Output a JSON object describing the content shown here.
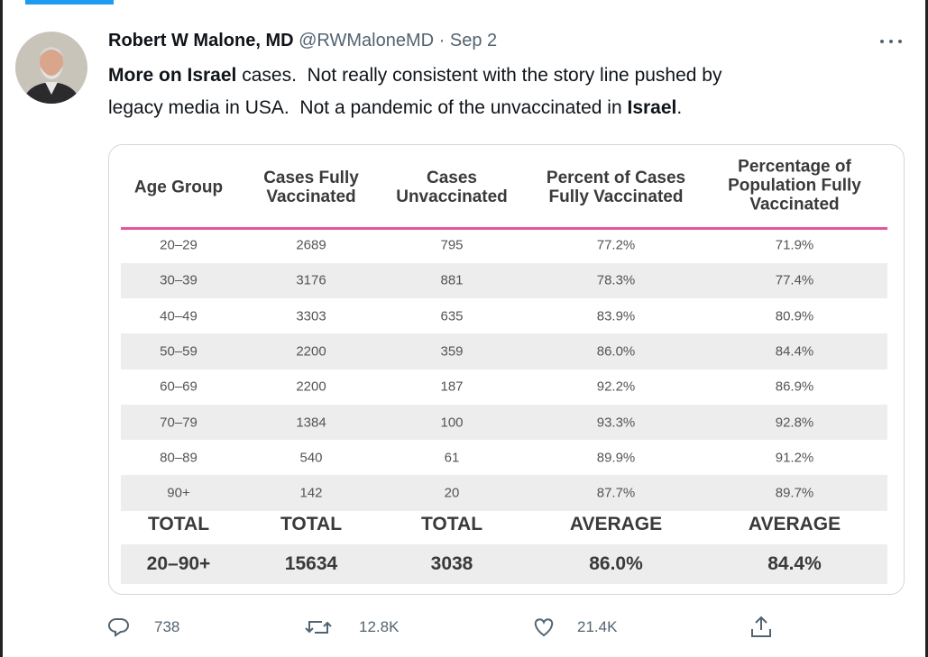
{
  "tweet": {
    "author": {
      "name": "Robert W Malone, MD",
      "handle": "@RWMaloneMD",
      "separator": "·",
      "date": "Sep 2"
    },
    "text_lines": [
      [
        {
          "text": "More on Israel",
          "bold": true
        },
        {
          "text": " cases.  Not really consistent with the story line pushed by",
          "bold": false
        }
      ],
      [
        {
          "text": "legacy media in USA.  Not a pandemic of the unvaccinated in ",
          "bold": false
        },
        {
          "text": "Israel",
          "bold": true
        },
        {
          "text": ".",
          "bold": false
        }
      ]
    ],
    "table": {
      "headers": [
        [
          "Age Group"
        ],
        [
          "Cases Fully",
          "Vaccinated"
        ],
        [
          "Cases",
          "Unvaccinated"
        ],
        [
          "Percent of Cases",
          "Fully Vaccinated"
        ],
        [
          "Percentage of",
          "Population Fully",
          "Vaccinated"
        ]
      ],
      "rows": [
        [
          "20–29",
          "2689",
          "795",
          "77.2%",
          "71.9%"
        ],
        [
          "30–39",
          "3176",
          "881",
          "78.3%",
          "77.4%"
        ],
        [
          "40–49",
          "3303",
          "635",
          "83.9%",
          "80.9%"
        ],
        [
          "50–59",
          "2200",
          "359",
          "86.0%",
          "84.4%"
        ],
        [
          "60–69",
          "2200",
          "187",
          "92.2%",
          "86.9%"
        ],
        [
          "70–79",
          "1384",
          "100",
          "93.3%",
          "92.8%"
        ],
        [
          "80–89",
          "540",
          "61",
          "89.9%",
          "91.2%"
        ],
        [
          "90+",
          "142",
          "20",
          "87.7%",
          "89.7%"
        ]
      ],
      "total_labels": [
        "TOTAL",
        "TOTAL",
        "TOTAL",
        "AVERAGE",
        "AVERAGE"
      ],
      "totals": [
        "20–90+",
        "15634",
        "3038",
        "86.0%",
        "84.4%"
      ]
    },
    "actions": {
      "replies": "738",
      "retweets": "12.8K",
      "likes": "21.4K"
    }
  }
}
